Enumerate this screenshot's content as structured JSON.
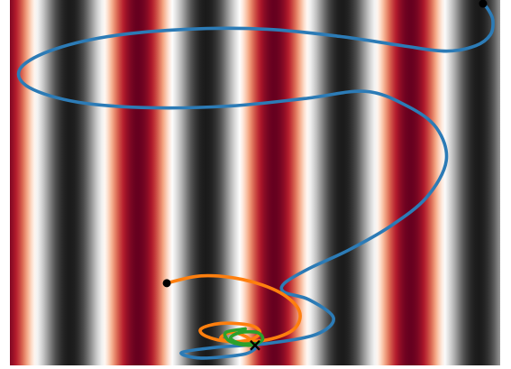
{
  "chart_data": {
    "type": "line",
    "title": "",
    "xlabel": "",
    "ylabel": "",
    "axes_visible": false,
    "background": {
      "kind": "heatmap",
      "description_free_field": false,
      "colormap": "RdGy",
      "colormap_stops": [
        "#67001f",
        "#b2182b",
        "#d6604d",
        "#f4a582",
        "#fddbc7",
        "#ffffff",
        "#e0e0e0",
        "#bababa",
        "#878787",
        "#4d4d4d",
        "#1a1a1a"
      ],
      "stripe_phase": 0.56,
      "stripe_cycles": 3.6
    },
    "xlim": [
      -1.0,
      1.0
    ],
    "ylim": [
      -1.0,
      1.0
    ],
    "colors": {
      "series_blue": "#2c7bb6",
      "series_orange": "#ff7f0e",
      "series_green": "#2ca02c",
      "start_marker": "#000000",
      "end_marker": "#000000"
    },
    "series": [
      {
        "color": "#2c7bb6",
        "x": [
          0.93,
          0.95,
          0.97,
          0.96,
          0.9,
          0.78,
          0.6,
          0.35,
          0.05,
          -0.28,
          -0.6,
          -0.84,
          -0.96,
          -0.92,
          -0.72,
          -0.42,
          -0.1,
          0.2,
          0.45,
          0.62,
          0.74,
          0.78,
          0.7,
          0.55,
          0.38,
          0.22,
          0.12,
          0.12,
          0.22,
          0.32,
          0.25,
          0.05,
          -0.15,
          -0.3,
          -0.22,
          -0.05,
          0.0
        ],
        "y": [
          0.98,
          0.95,
          0.89,
          0.81,
          0.75,
          0.72,
          0.75,
          0.8,
          0.84,
          0.84,
          0.8,
          0.72,
          0.62,
          0.52,
          0.44,
          0.41,
          0.42,
          0.46,
          0.5,
          0.42,
          0.3,
          0.12,
          -0.08,
          -0.24,
          -0.37,
          -0.47,
          -0.55,
          -0.6,
          -0.64,
          -0.74,
          -0.83,
          -0.88,
          -0.9,
          -0.93,
          -0.96,
          -0.94,
          -0.91
        ]
      },
      {
        "color": "#ff7f0e",
        "x": [
          -0.36,
          -0.22,
          -0.05,
          0.1,
          0.18,
          0.16,
          0.05,
          -0.1,
          -0.2,
          -0.22,
          -0.14,
          -0.02,
          0.02,
          -0.02,
          -0.1,
          -0.14,
          -0.1,
          -0.04,
          0.0
        ],
        "y": [
          -0.55,
          -0.51,
          -0.53,
          -0.6,
          -0.7,
          -0.8,
          -0.86,
          -0.87,
          -0.84,
          -0.8,
          -0.77,
          -0.78,
          -0.82,
          -0.86,
          -0.87,
          -0.85,
          -0.82,
          -0.84,
          -0.88
        ]
      },
      {
        "color": "#2ca02c",
        "x": [
          -0.04,
          -0.12,
          -0.1,
          -0.02,
          0.03,
          0.01,
          -0.06,
          -0.1,
          -0.06,
          0.0
        ],
        "y": [
          -0.8,
          -0.82,
          -0.87,
          -0.89,
          -0.86,
          -0.82,
          -0.82,
          -0.85,
          -0.88,
          -0.88
        ]
      }
    ],
    "markers": [
      {
        "kind": "start",
        "symbol": "circle",
        "x": 0.93,
        "y": 0.98
      },
      {
        "kind": "start",
        "symbol": "circle",
        "x": -0.36,
        "y": -0.55
      },
      {
        "kind": "end",
        "symbol": "x",
        "x": 0.0,
        "y": -0.89
      }
    ]
  }
}
